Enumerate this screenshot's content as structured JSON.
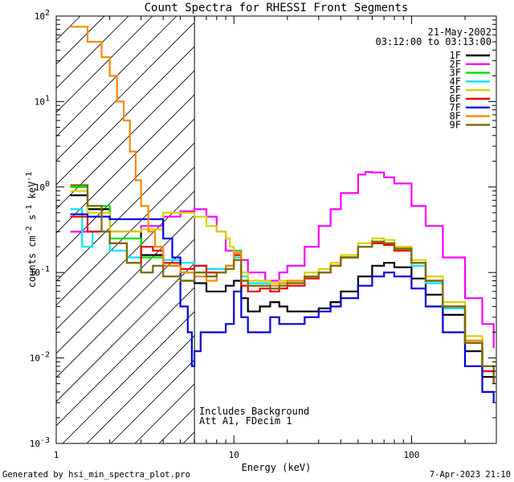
{
  "chart_data": {
    "type": "line",
    "title": "Count Spectra for RHESSI Front Segments",
    "xlabel": "Energy (keV)",
    "ylabel": "counts cm",
    "ylabel_unit_a": " s",
    "ylabel_unit_b": " keV",
    "ylabel_exp": "-2",
    "ylabel_exp2": "-1",
    "ylabel_exp3": "-1",
    "xscale": "log",
    "yscale": "log",
    "xlim": [
      1,
      300
    ],
    "ylim": [
      0.001,
      100
    ],
    "x_ticks": [
      {
        "value": 1,
        "label": "1"
      },
      {
        "value": 10,
        "label": "10"
      },
      {
        "value": 100,
        "label": "100"
      }
    ],
    "y_ticks": [
      {
        "value": 0.001,
        "base": "10",
        "exp": "-3"
      },
      {
        "value": 0.01,
        "base": "10",
        "exp": "-2"
      },
      {
        "value": 0.1,
        "base": "10",
        "exp": "-1"
      },
      {
        "value": 1,
        "base": "10",
        "exp": "0"
      },
      {
        "value": 10,
        "base": "10",
        "exp": "1"
      },
      {
        "value": 100,
        "base": "10",
        "exp": "2"
      }
    ],
    "hatch_region_kev": [
      1,
      6
    ],
    "date": "21-May-2002",
    "time_range": "03:12:00 to 03:13:00",
    "annotation_1": "Includes Background",
    "annotation_2": "Att A1, FDecim 1",
    "footer_left": "Generated by hsi_min_spectra_plot.pro",
    "footer_right": "7-Apr-2023 21:10",
    "series": [
      {
        "name": "1F",
        "color": "#000000",
        "points": [
          [
            1.2,
            0.8
          ],
          [
            1.5,
            0.55
          ],
          [
            2,
            0.3
          ],
          [
            3,
            0.16
          ],
          [
            4,
            0.12
          ],
          [
            5,
            0.08
          ],
          [
            6,
            0.075
          ],
          [
            7,
            0.06
          ],
          [
            8,
            0.06
          ],
          [
            9,
            0.07
          ],
          [
            10,
            0.08
          ],
          [
            11,
            0.05
          ],
          [
            12,
            0.035
          ],
          [
            14,
            0.04
          ],
          [
            16,
            0.045
          ],
          [
            18,
            0.04
          ],
          [
            20,
            0.035
          ],
          [
            25,
            0.035
          ],
          [
            30,
            0.038
          ],
          [
            35,
            0.045
          ],
          [
            40,
            0.06
          ],
          [
            50,
            0.09
          ],
          [
            60,
            0.12
          ],
          [
            70,
            0.13
          ],
          [
            80,
            0.115
          ],
          [
            100,
            0.085
          ],
          [
            120,
            0.055
          ],
          [
            150,
            0.032
          ],
          [
            200,
            0.012
          ],
          [
            250,
            0.006
          ],
          [
            290,
            0.005
          ]
        ]
      },
      {
        "name": "2F",
        "color": "#ff00ff",
        "points": [
          [
            1.2,
            0.3
          ],
          [
            2,
            0.3
          ],
          [
            3,
            0.35
          ],
          [
            4,
            0.45
          ],
          [
            5,
            0.52
          ],
          [
            6,
            0.55
          ],
          [
            7,
            0.45
          ],
          [
            8,
            0.3
          ],
          [
            9,
            0.18
          ],
          [
            10,
            0.14
          ],
          [
            12,
            0.1
          ],
          [
            15,
            0.08
          ],
          [
            18,
            0.1
          ],
          [
            20,
            0.12
          ],
          [
            25,
            0.2
          ],
          [
            30,
            0.35
          ],
          [
            35,
            0.55
          ],
          [
            40,
            0.85
          ],
          [
            50,
            1.4
          ],
          [
            55,
            1.5
          ],
          [
            60,
            1.48
          ],
          [
            70,
            1.3
          ],
          [
            80,
            1.1
          ],
          [
            100,
            0.6
          ],
          [
            120,
            0.35
          ],
          [
            150,
            0.15
          ],
          [
            200,
            0.05
          ],
          [
            250,
            0.025
          ],
          [
            290,
            0.013
          ]
        ]
      },
      {
        "name": "3F",
        "color": "#00e000",
        "points": [
          [
            1.2,
            1.0
          ],
          [
            1.5,
            0.6
          ],
          [
            2,
            0.25
          ],
          [
            3,
            0.15
          ],
          [
            4,
            0.13
          ],
          [
            5,
            0.1
          ],
          [
            6,
            0.1
          ],
          [
            7,
            0.1
          ],
          [
            8,
            0.1
          ],
          [
            9,
            0.12
          ],
          [
            10,
            0.18
          ],
          [
            11,
            0.08
          ],
          [
            12,
            0.07
          ],
          [
            14,
            0.07
          ],
          [
            16,
            0.065
          ],
          [
            18,
            0.07
          ],
          [
            20,
            0.075
          ],
          [
            25,
            0.09
          ],
          [
            30,
            0.1
          ],
          [
            35,
            0.12
          ],
          [
            40,
            0.15
          ],
          [
            50,
            0.2
          ],
          [
            60,
            0.23
          ],
          [
            70,
            0.22
          ],
          [
            80,
            0.19
          ],
          [
            100,
            0.13
          ],
          [
            120,
            0.08
          ],
          [
            150,
            0.04
          ],
          [
            200,
            0.015
          ],
          [
            250,
            0.008
          ],
          [
            290,
            0.006
          ]
        ]
      },
      {
        "name": "4F",
        "color": "#00e5ff",
        "points": [
          [
            1.2,
            0.55
          ],
          [
            1.4,
            0.2
          ],
          [
            1.6,
            0.3
          ],
          [
            2,
            0.18
          ],
          [
            2.5,
            0.15
          ],
          [
            3,
            0.1
          ],
          [
            3.5,
            0.12
          ],
          [
            4,
            0.14
          ],
          [
            5,
            0.13
          ],
          [
            6,
            0.12
          ],
          [
            7,
            0.11
          ],
          [
            8,
            0.11
          ],
          [
            9,
            0.12
          ],
          [
            10,
            0.15
          ],
          [
            11,
            0.09
          ],
          [
            12,
            0.075
          ],
          [
            14,
            0.075
          ],
          [
            16,
            0.07
          ],
          [
            18,
            0.075
          ],
          [
            20,
            0.08
          ],
          [
            25,
            0.09
          ],
          [
            30,
            0.1
          ],
          [
            35,
            0.12
          ],
          [
            40,
            0.15
          ],
          [
            50,
            0.2
          ],
          [
            60,
            0.22
          ],
          [
            70,
            0.21
          ],
          [
            80,
            0.18
          ],
          [
            100,
            0.12
          ],
          [
            120,
            0.075
          ],
          [
            150,
            0.038
          ],
          [
            200,
            0.015
          ],
          [
            250,
            0.008
          ],
          [
            290,
            0.005
          ]
        ]
      },
      {
        "name": "5F",
        "color": "#d4d400",
        "points": [
          [
            1.2,
            0.9
          ],
          [
            1.5,
            0.5
          ],
          [
            2,
            0.3
          ],
          [
            3,
            0.32
          ],
          [
            4,
            0.5
          ],
          [
            5,
            0.5
          ],
          [
            6,
            0.45
          ],
          [
            7,
            0.35
          ],
          [
            8,
            0.3
          ],
          [
            9,
            0.25
          ],
          [
            9.5,
            0.2
          ],
          [
            10,
            0.14
          ],
          [
            11,
            0.1
          ],
          [
            12,
            0.08
          ],
          [
            14,
            0.08
          ],
          [
            16,
            0.075
          ],
          [
            18,
            0.08
          ],
          [
            20,
            0.08
          ],
          [
            25,
            0.1
          ],
          [
            30,
            0.11
          ],
          [
            35,
            0.13
          ],
          [
            40,
            0.16
          ],
          [
            50,
            0.22
          ],
          [
            60,
            0.25
          ],
          [
            70,
            0.24
          ],
          [
            80,
            0.2
          ],
          [
            100,
            0.14
          ],
          [
            120,
            0.09
          ],
          [
            150,
            0.045
          ],
          [
            200,
            0.018
          ],
          [
            250,
            0.008
          ],
          [
            290,
            0.006
          ]
        ]
      },
      {
        "name": "6F",
        "color": "#ee0000",
        "points": [
          [
            1.2,
            0.45
          ],
          [
            1.5,
            0.3
          ],
          [
            2,
            0.22
          ],
          [
            2.5,
            0.13
          ],
          [
            3,
            0.2
          ],
          [
            3.5,
            0.18
          ],
          [
            4,
            0.13
          ],
          [
            5,
            0.11
          ],
          [
            6,
            0.12
          ],
          [
            7,
            0.1
          ],
          [
            8,
            0.1
          ],
          [
            9,
            0.12
          ],
          [
            10,
            0.16
          ],
          [
            11,
            0.07
          ],
          [
            12,
            0.06
          ],
          [
            14,
            0.065
          ],
          [
            16,
            0.06
          ],
          [
            18,
            0.065
          ],
          [
            20,
            0.07
          ],
          [
            25,
            0.085
          ],
          [
            30,
            0.1
          ],
          [
            35,
            0.12
          ],
          [
            40,
            0.15
          ],
          [
            50,
            0.2
          ],
          [
            60,
            0.22
          ],
          [
            70,
            0.21
          ],
          [
            80,
            0.18
          ],
          [
            100,
            0.13
          ],
          [
            120,
            0.08
          ],
          [
            150,
            0.04
          ],
          [
            200,
            0.015
          ],
          [
            250,
            0.007
          ],
          [
            290,
            0.005
          ]
        ]
      },
      {
        "name": "7F",
        "color": "#0000dd",
        "points": [
          [
            1.2,
            0.48
          ],
          [
            1.5,
            0.45
          ],
          [
            2,
            0.42
          ],
          [
            3,
            0.42
          ],
          [
            3.5,
            0.42
          ],
          [
            4,
            0.25
          ],
          [
            4.5,
            0.15
          ],
          [
            5,
            0.04
          ],
          [
            5.5,
            0.02
          ],
          [
            5.8,
            0.008
          ],
          [
            6,
            0.012
          ],
          [
            6.5,
            0.02
          ],
          [
            7,
            0.02
          ],
          [
            8,
            0.02
          ],
          [
            9,
            0.025
          ],
          [
            10,
            0.06
          ],
          [
            11,
            0.03
          ],
          [
            12,
            0.02
          ],
          [
            14,
            0.02
          ],
          [
            16,
            0.03
          ],
          [
            18,
            0.025
          ],
          [
            20,
            0.025
          ],
          [
            25,
            0.03
          ],
          [
            30,
            0.035
          ],
          [
            35,
            0.04
          ],
          [
            40,
            0.05
          ],
          [
            50,
            0.07
          ],
          [
            60,
            0.09
          ],
          [
            70,
            0.1
          ],
          [
            80,
            0.09
          ],
          [
            100,
            0.065
          ],
          [
            120,
            0.04
          ],
          [
            150,
            0.02
          ],
          [
            200,
            0.008
          ],
          [
            250,
            0.004
          ],
          [
            290,
            0.003
          ]
        ]
      },
      {
        "name": "8F",
        "color": "#ff8800",
        "points": [
          [
            1.2,
            75
          ],
          [
            1.5,
            50
          ],
          [
            1.8,
            33
          ],
          [
            2.0,
            20
          ],
          [
            2.2,
            10
          ],
          [
            2.4,
            6
          ],
          [
            2.6,
            2.6
          ],
          [
            2.8,
            1.2
          ],
          [
            3.0,
            0.6
          ],
          [
            3.3,
            0.3
          ],
          [
            3.6,
            0.2
          ],
          [
            4,
            0.12
          ],
          [
            5,
            0.1
          ],
          [
            6,
            0.09
          ],
          [
            7,
            0.08
          ],
          [
            8,
            0.1
          ],
          [
            9,
            0.12
          ],
          [
            10,
            0.17
          ],
          [
            11,
            0.08
          ],
          [
            12,
            0.07
          ],
          [
            14,
            0.07
          ],
          [
            16,
            0.07
          ],
          [
            18,
            0.075
          ],
          [
            20,
            0.08
          ],
          [
            25,
            0.09
          ],
          [
            30,
            0.1
          ],
          [
            35,
            0.12
          ],
          [
            40,
            0.15
          ],
          [
            50,
            0.2
          ],
          [
            60,
            0.23
          ],
          [
            70,
            0.22
          ],
          [
            80,
            0.19
          ],
          [
            100,
            0.13
          ],
          [
            120,
            0.08
          ],
          [
            150,
            0.04
          ],
          [
            200,
            0.016
          ],
          [
            250,
            0.008
          ],
          [
            290,
            0.006
          ]
        ]
      },
      {
        "name": "9F",
        "color": "#7a6a00",
        "points": [
          [
            1.2,
            1.05
          ],
          [
            1.5,
            0.6
          ],
          [
            1.8,
            0.3
          ],
          [
            2,
            0.22
          ],
          [
            2.5,
            0.13
          ],
          [
            3,
            0.1
          ],
          [
            3.5,
            0.12
          ],
          [
            4,
            0.09
          ],
          [
            5,
            0.08
          ],
          [
            6,
            0.1
          ],
          [
            7,
            0.09
          ],
          [
            8,
            0.1
          ],
          [
            9,
            0.11
          ],
          [
            10,
            0.14
          ],
          [
            11,
            0.08
          ],
          [
            12,
            0.07
          ],
          [
            14,
            0.07
          ],
          [
            16,
            0.065
          ],
          [
            18,
            0.07
          ],
          [
            20,
            0.075
          ],
          [
            25,
            0.09
          ],
          [
            30,
            0.1
          ],
          [
            35,
            0.12
          ],
          [
            40,
            0.15
          ],
          [
            50,
            0.2
          ],
          [
            60,
            0.23
          ],
          [
            70,
            0.22
          ],
          [
            80,
            0.19
          ],
          [
            100,
            0.13
          ],
          [
            120,
            0.08
          ],
          [
            150,
            0.04
          ],
          [
            200,
            0.015
          ],
          [
            250,
            0.008
          ],
          [
            290,
            0.005
          ]
        ]
      }
    ]
  }
}
